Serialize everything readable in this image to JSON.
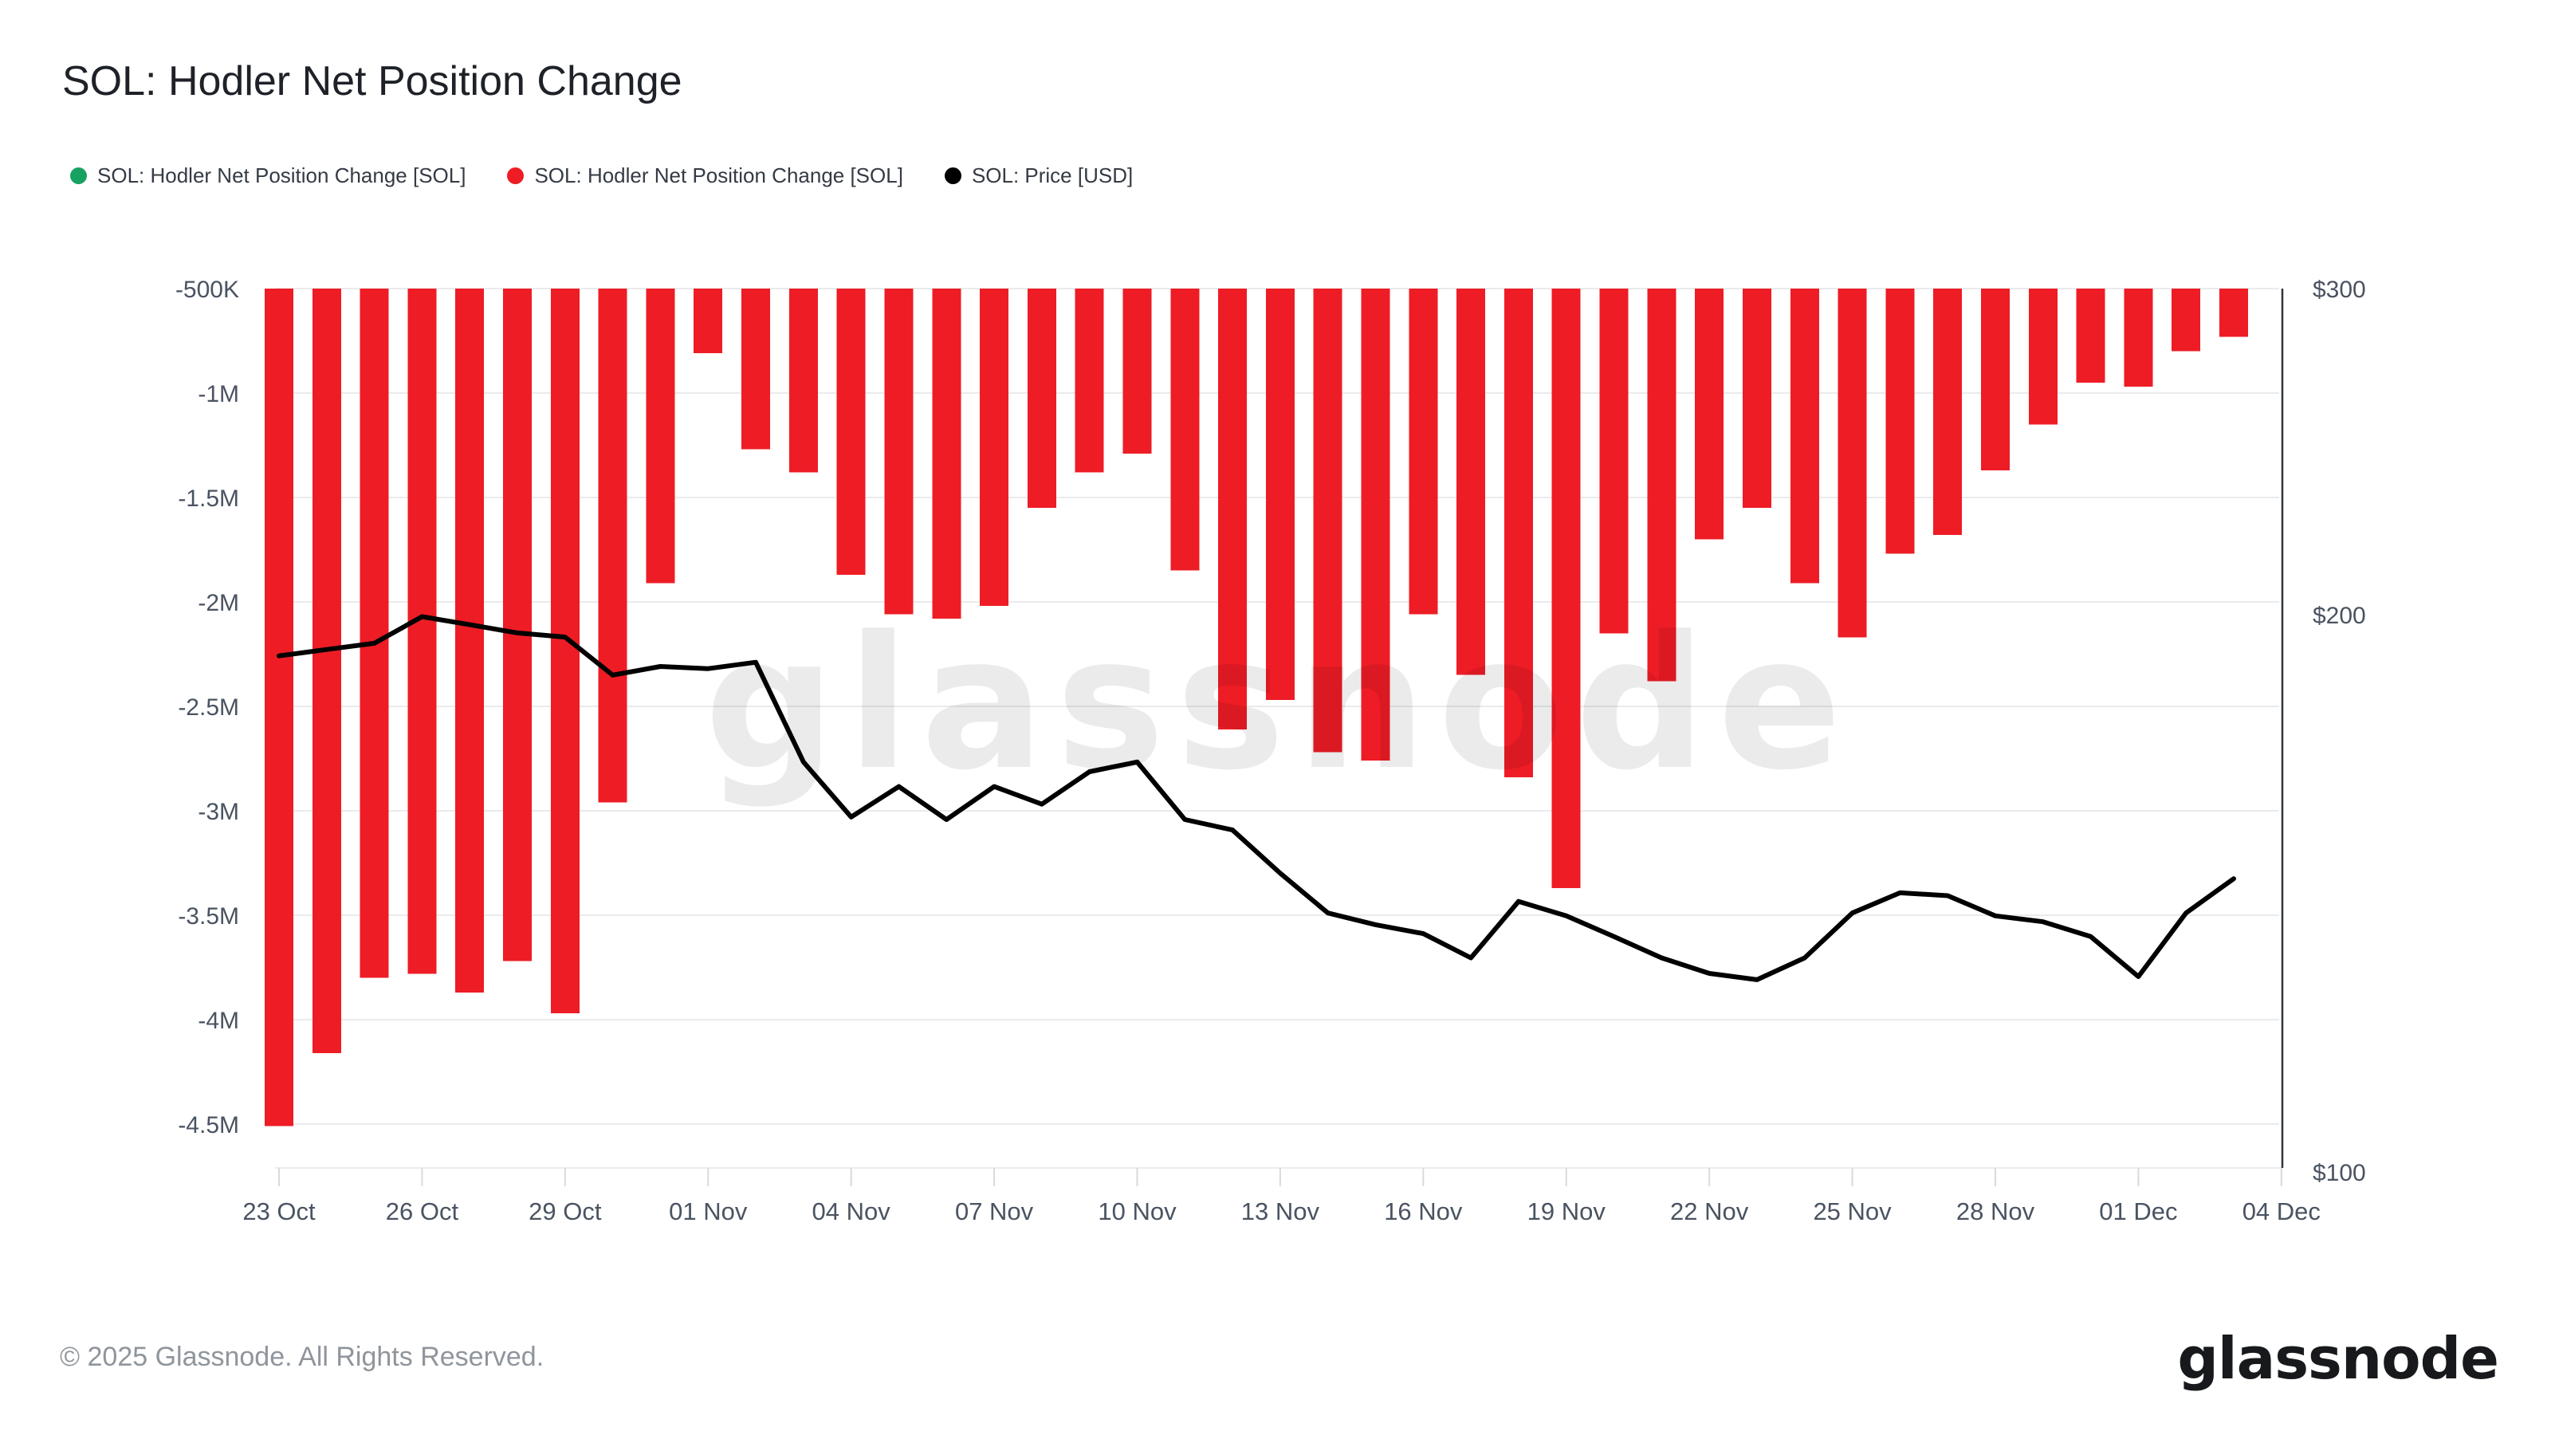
{
  "title": "SOL: Hodler Net Position Change",
  "legend": {
    "items": [
      {
        "label": "SOL: Hodler Net Position Change [SOL]",
        "color": "#17a261",
        "series": "hodler-net-position-change-positive"
      },
      {
        "label": "SOL: Hodler Net Position Change [SOL]",
        "color": "#ee1c25",
        "series": "hodler-net-position-change-negative"
      },
      {
        "label": "SOL: Price [USD]",
        "color": "#000000",
        "series": "price"
      }
    ]
  },
  "chart_data": {
    "type": "bar+line",
    "title": "SOL: Hodler Net Position Change",
    "x": [
      "23 Oct",
      "24 Oct",
      "25 Oct",
      "26 Oct",
      "27 Oct",
      "28 Oct",
      "29 Oct",
      "30 Oct",
      "31 Oct",
      "01 Nov",
      "02 Nov",
      "03 Nov",
      "04 Nov",
      "05 Nov",
      "06 Nov",
      "07 Nov",
      "08 Nov",
      "09 Nov",
      "10 Nov",
      "11 Nov",
      "12 Nov",
      "13 Nov",
      "14 Nov",
      "15 Nov",
      "16 Nov",
      "17 Nov",
      "18 Nov",
      "19 Nov",
      "20 Nov",
      "21 Nov",
      "22 Nov",
      "23 Nov",
      "24 Nov",
      "25 Nov",
      "26 Nov",
      "27 Nov",
      "28 Nov",
      "29 Nov",
      "30 Nov",
      "01 Dec",
      "02 Dec",
      "03 Dec"
    ],
    "series": [
      {
        "name": "SOL: Hodler Net Position Change [SOL]",
        "type": "bar",
        "axis": "left",
        "unit": "SOL, millions",
        "color": "#ee1c25",
        "values": [
          -4.51,
          -4.16,
          -3.8,
          -3.78,
          -3.87,
          -3.72,
          -3.97,
          -2.96,
          -1.91,
          -0.81,
          -1.27,
          -1.38,
          -1.87,
          -2.06,
          -2.08,
          -2.02,
          -1.55,
          -1.38,
          -1.29,
          -1.85,
          -2.61,
          -2.47,
          -2.72,
          -2.76,
          -2.06,
          -2.35,
          -2.84,
          -3.37,
          -2.15,
          -2.38,
          -1.7,
          -1.55,
          -1.91,
          -2.17,
          -1.77,
          -1.68,
          -1.37,
          -1.15,
          -0.95,
          -0.97,
          -0.8,
          -0.73
        ]
      },
      {
        "name": "SOL: Price [USD]",
        "type": "line",
        "axis": "right",
        "unit": "USD",
        "scale": "log",
        "color": "#000000",
        "values": [
          190,
          191.5,
          193,
          199.5,
          197.5,
          195.5,
          194.5,
          185.5,
          187.5,
          187,
          188.5,
          166.5,
          155.5,
          161.5,
          155,
          161.5,
          158,
          164.5,
          166.5,
          155,
          153,
          145,
          138,
          136,
          134.5,
          130.5,
          140,
          137.5,
          134,
          130.5,
          128,
          127,
          130.5,
          138,
          141.5,
          141,
          137.5,
          136.5,
          134,
          127.5,
          138,
          144
        ]
      }
    ],
    "left_axis": {
      "tick_labels": [
        "-500K",
        "-1M",
        "-1.5M",
        "-2M",
        "-2.5M",
        "-3M",
        "-3.5M",
        "-4M",
        "-4.5M"
      ],
      "tick_values": [
        -0.5,
        -1,
        -1.5,
        -2,
        -2.5,
        -3,
        -3.5,
        -4,
        -4.5
      ],
      "scale": "linear",
      "grid": true
    },
    "right_axis": {
      "tick_labels": [
        "$300",
        "$200",
        "$100"
      ],
      "tick_values": [
        300,
        200,
        100
      ],
      "scale": "log",
      "min": 100,
      "max": 300
    },
    "x_tick_labels": [
      "23 Oct",
      "26 Oct",
      "29 Oct",
      "01 Nov",
      "04 Nov",
      "07 Nov",
      "10 Nov",
      "13 Nov",
      "16 Nov",
      "19 Nov",
      "22 Nov",
      "25 Nov",
      "28 Nov",
      "01 Dec",
      "04 Dec"
    ],
    "x_tick_step_days": 3,
    "legend_position": "top"
  },
  "watermark": "glassnode",
  "footer": {
    "copyright": "© 2025 Glassnode. All Rights Reserved.",
    "logo_text": "glassnode"
  },
  "colors": {
    "bar_negative": "#ee1c25",
    "bar_positive": "#17a261",
    "price_line": "#000000",
    "grid_line": "#e9ebec",
    "axis_line": "#2f353d",
    "tick_mark": "#d8dadd",
    "axis_text": "#4a5361",
    "background": "#ffffff"
  }
}
